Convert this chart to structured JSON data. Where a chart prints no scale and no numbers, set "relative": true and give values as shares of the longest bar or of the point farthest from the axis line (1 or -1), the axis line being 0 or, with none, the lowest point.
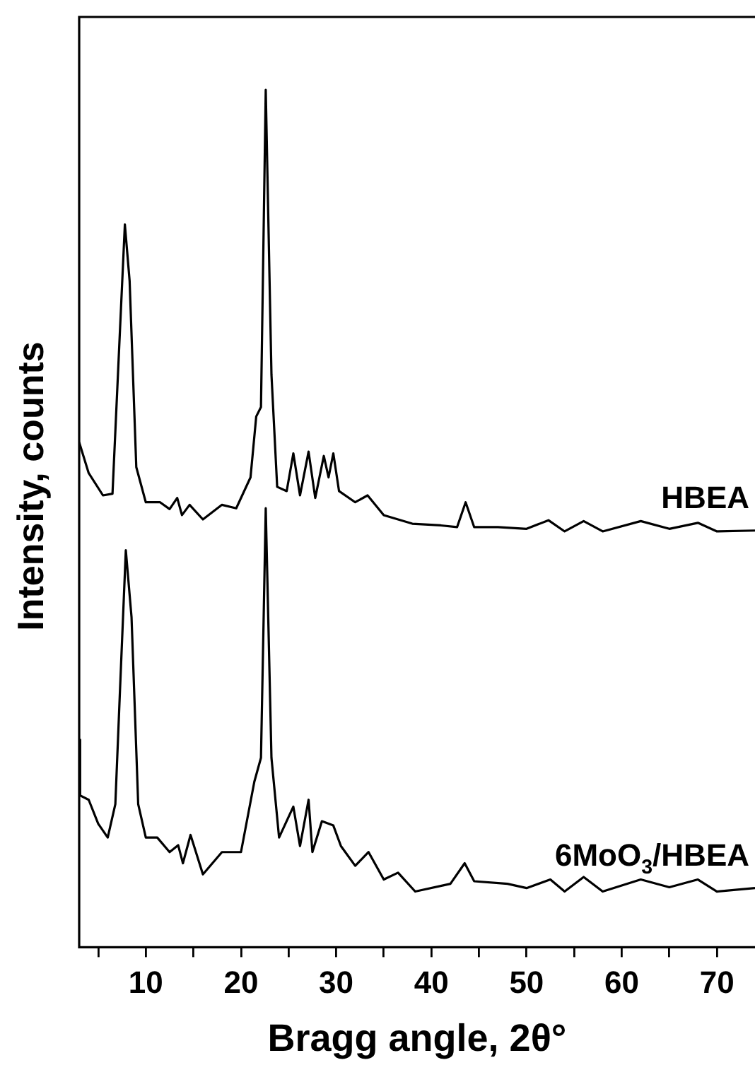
{
  "chart_data": {
    "type": "line",
    "xlabel": "Bragg angle, 2θ°",
    "ylabel": "Intensity, counts",
    "relative": true,
    "grid": false,
    "legend": false,
    "marker": "none",
    "line_style": "solid",
    "xlim": [
      3,
      74
    ],
    "xticks": [
      {
        "value": 5,
        "label": null
      },
      10,
      {
        "value": 15,
        "label": null
      },
      20,
      {
        "value": 25,
        "label": null
      },
      30,
      {
        "value": 35,
        "label": null
      },
      40,
      {
        "value": 45,
        "label": null
      },
      50,
      {
        "value": 55,
        "label": null
      },
      60,
      {
        "value": 65,
        "label": null
      },
      70
    ],
    "series": [
      {
        "name": "HBEA",
        "color": "#000000",
        "x": [
          3,
          4,
          5.5,
          6.5,
          7.3,
          7.8,
          8.3,
          9,
          10,
          11.5,
          12.5,
          13.3,
          13.8,
          14.6,
          16,
          18,
          19.5,
          21,
          21.6,
          22.1,
          22.6,
          23.2,
          23.8,
          24.8,
          25.5,
          26.2,
          27.1,
          27.8,
          28.7,
          29.2,
          29.7,
          30.3,
          32,
          33.3,
          35,
          38,
          41,
          42.7,
          43.6,
          44.5,
          47,
          50,
          52.3,
          54,
          56,
          58,
          62,
          65,
          68,
          70,
          74
        ],
        "values": [
          0.589,
          0.553,
          0.527,
          0.529,
          0.723,
          0.843,
          0.777,
          0.56,
          0.519,
          0.519,
          0.511,
          0.524,
          0.504,
          0.516,
          0.499,
          0.516,
          0.512,
          0.548,
          0.619,
          0.63,
          1,
          0.668,
          0.537,
          0.532,
          0.576,
          0.527,
          0.578,
          0.524,
          0.573,
          0.548,
          0.576,
          0.532,
          0.519,
          0.527,
          0.504,
          0.494,
          0.492,
          0.49,
          0.519,
          0.49,
          0.49,
          0.488,
          0.498,
          0.485,
          0.497,
          0.485,
          0.497,
          0.488,
          0.495,
          0.485,
          0.486
        ]
      },
      {
        "name": "6MoO$_{3}$/HBEA",
        "color": "#000000",
        "x": [
          3,
          3.1,
          4,
          5,
          6,
          6.8,
          7.3,
          7.9,
          8.5,
          9.2,
          10,
          11.2,
          12.5,
          13.4,
          13.9,
          14.7,
          16,
          18,
          20,
          21.4,
          22.1,
          22.6,
          23.2,
          24,
          25.5,
          26.2,
          27.1,
          27.5,
          28.5,
          29.7,
          30.5,
          32,
          33.4,
          35,
          36.5,
          38.3,
          42,
          43.5,
          44.5,
          48,
          50,
          52.5,
          54,
          56,
          58,
          62,
          65,
          68,
          70,
          74
        ],
        "values": [
          0.242,
          0.177,
          0.172,
          0.144,
          0.128,
          0.167,
          0.303,
          0.463,
          0.385,
          0.167,
          0.128,
          0.128,
          0.111,
          0.119,
          0.098,
          0.131,
          0.085,
          0.111,
          0.111,
          0.193,
          0.221,
          0.512,
          0.221,
          0.128,
          0.164,
          0.118,
          0.172,
          0.111,
          0.147,
          0.142,
          0.118,
          0.095,
          0.111,
          0.079,
          0.087,
          0.065,
          0.074,
          0.098,
          0.077,
          0.074,
          0.069,
          0.079,
          0.065,
          0.082,
          0.065,
          0.079,
          0.07,
          0.079,
          0.065,
          0.069
        ]
      }
    ]
  }
}
